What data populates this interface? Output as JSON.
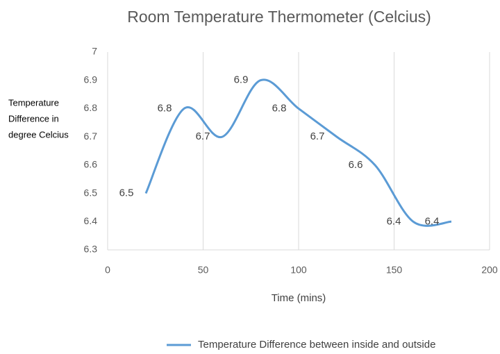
{
  "chart_data": {
    "type": "line",
    "title": "Room Temperature Thermometer (Celcius)",
    "x_label": "Time (mins)",
    "y_label": [
      "Temperature",
      "Difference in",
      "degree Celcius"
    ],
    "x": [
      20,
      40,
      60,
      80,
      100,
      120,
      140,
      160,
      180
    ],
    "series": [
      {
        "name": "Temperature Difference between inside and outside",
        "color": "#5b9bd5",
        "values": [
          6.5,
          6.8,
          6.7,
          6.9,
          6.8,
          6.7,
          6.6,
          6.4,
          6.4
        ]
      }
    ],
    "xlim": [
      0,
      200
    ],
    "xticks": [
      0,
      50,
      100,
      150,
      200
    ],
    "ylim": [
      6.3,
      7
    ],
    "yticks": [
      6.3,
      6.4,
      6.5,
      6.6,
      6.7,
      6.8,
      6.9,
      7
    ],
    "grid": true,
    "legend": "bottom"
  }
}
